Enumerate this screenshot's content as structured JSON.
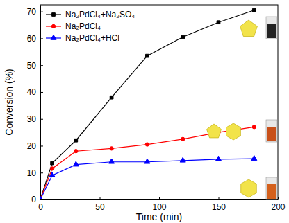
{
  "chart_data": {
    "type": "line",
    "x_label": "Time (min)",
    "y_label": "Conversion (%)",
    "x": [
      0,
      10,
      30,
      60,
      90,
      120,
      150,
      180
    ],
    "series": [
      {
        "name": "Na₂PdCl₄+Na₂SO₄",
        "color": "#000000",
        "marker": "square",
        "values": [
          0,
          13.5,
          22,
          38,
          53.5,
          60.5,
          66,
          70.5
        ]
      },
      {
        "name": "Na₂PdCl₄",
        "color": "#ff0000",
        "marker": "circle",
        "values": [
          0,
          11.5,
          18,
          19,
          20.5,
          22.5,
          25,
          27
        ]
      },
      {
        "name": "Na₂PdCl₄+HCl",
        "color": "#0000ff",
        "marker": "triangle",
        "values": [
          0,
          9,
          13,
          14,
          14,
          14.5,
          15,
          15.2
        ]
      }
    ],
    "xlim": [
      0,
      200
    ],
    "xticks": [
      0,
      50,
      100,
      150,
      200
    ],
    "ylim": [
      0,
      72.5
    ],
    "yticks": [
      0,
      10,
      20,
      30,
      40,
      50,
      60,
      70
    ],
    "legend": "upper left"
  }
}
